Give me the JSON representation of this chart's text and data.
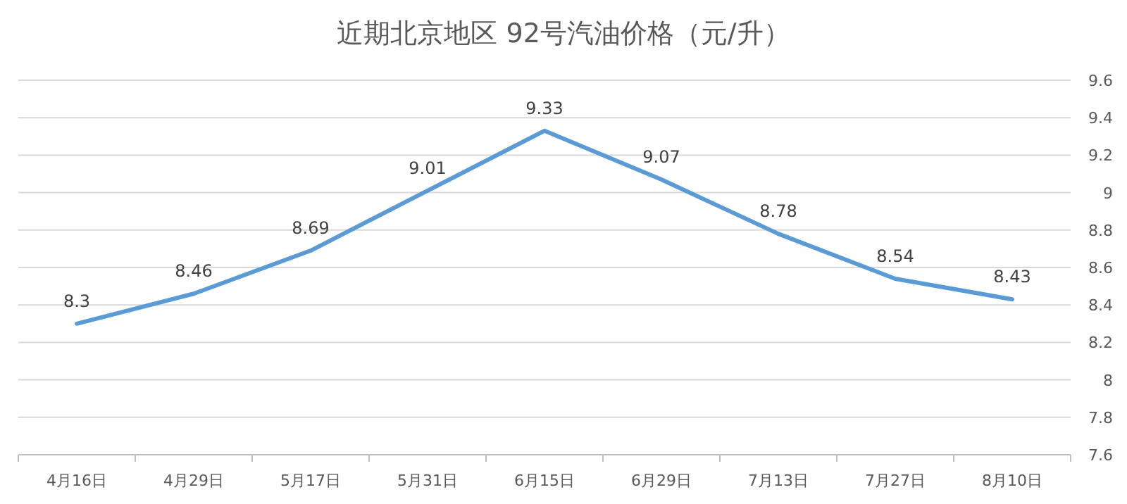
{
  "chart_data": {
    "type": "line",
    "title": "近期北京地区 92号汽油价格（元/升）",
    "categories": [
      "4月16日",
      "4月29日",
      "5月17日",
      "5月31日",
      "6月15日",
      "6月29日",
      "7月13日",
      "7月27日",
      "8月10日"
    ],
    "series": [
      {
        "color": "#5b9bd5",
        "values": [
          8.3,
          8.46,
          8.69,
          9.01,
          9.33,
          9.07,
          8.78,
          8.54,
          8.43
        ]
      }
    ],
    "ylim": [
      7.6,
      9.6
    ],
    "yticks": [
      7.6,
      7.8,
      8,
      8.2,
      8.4,
      8.6,
      8.8,
      9,
      9.2,
      9.4,
      9.6
    ],
    "grid": "y",
    "marker": "none",
    "line_style": "solid",
    "data_labels": true
  }
}
